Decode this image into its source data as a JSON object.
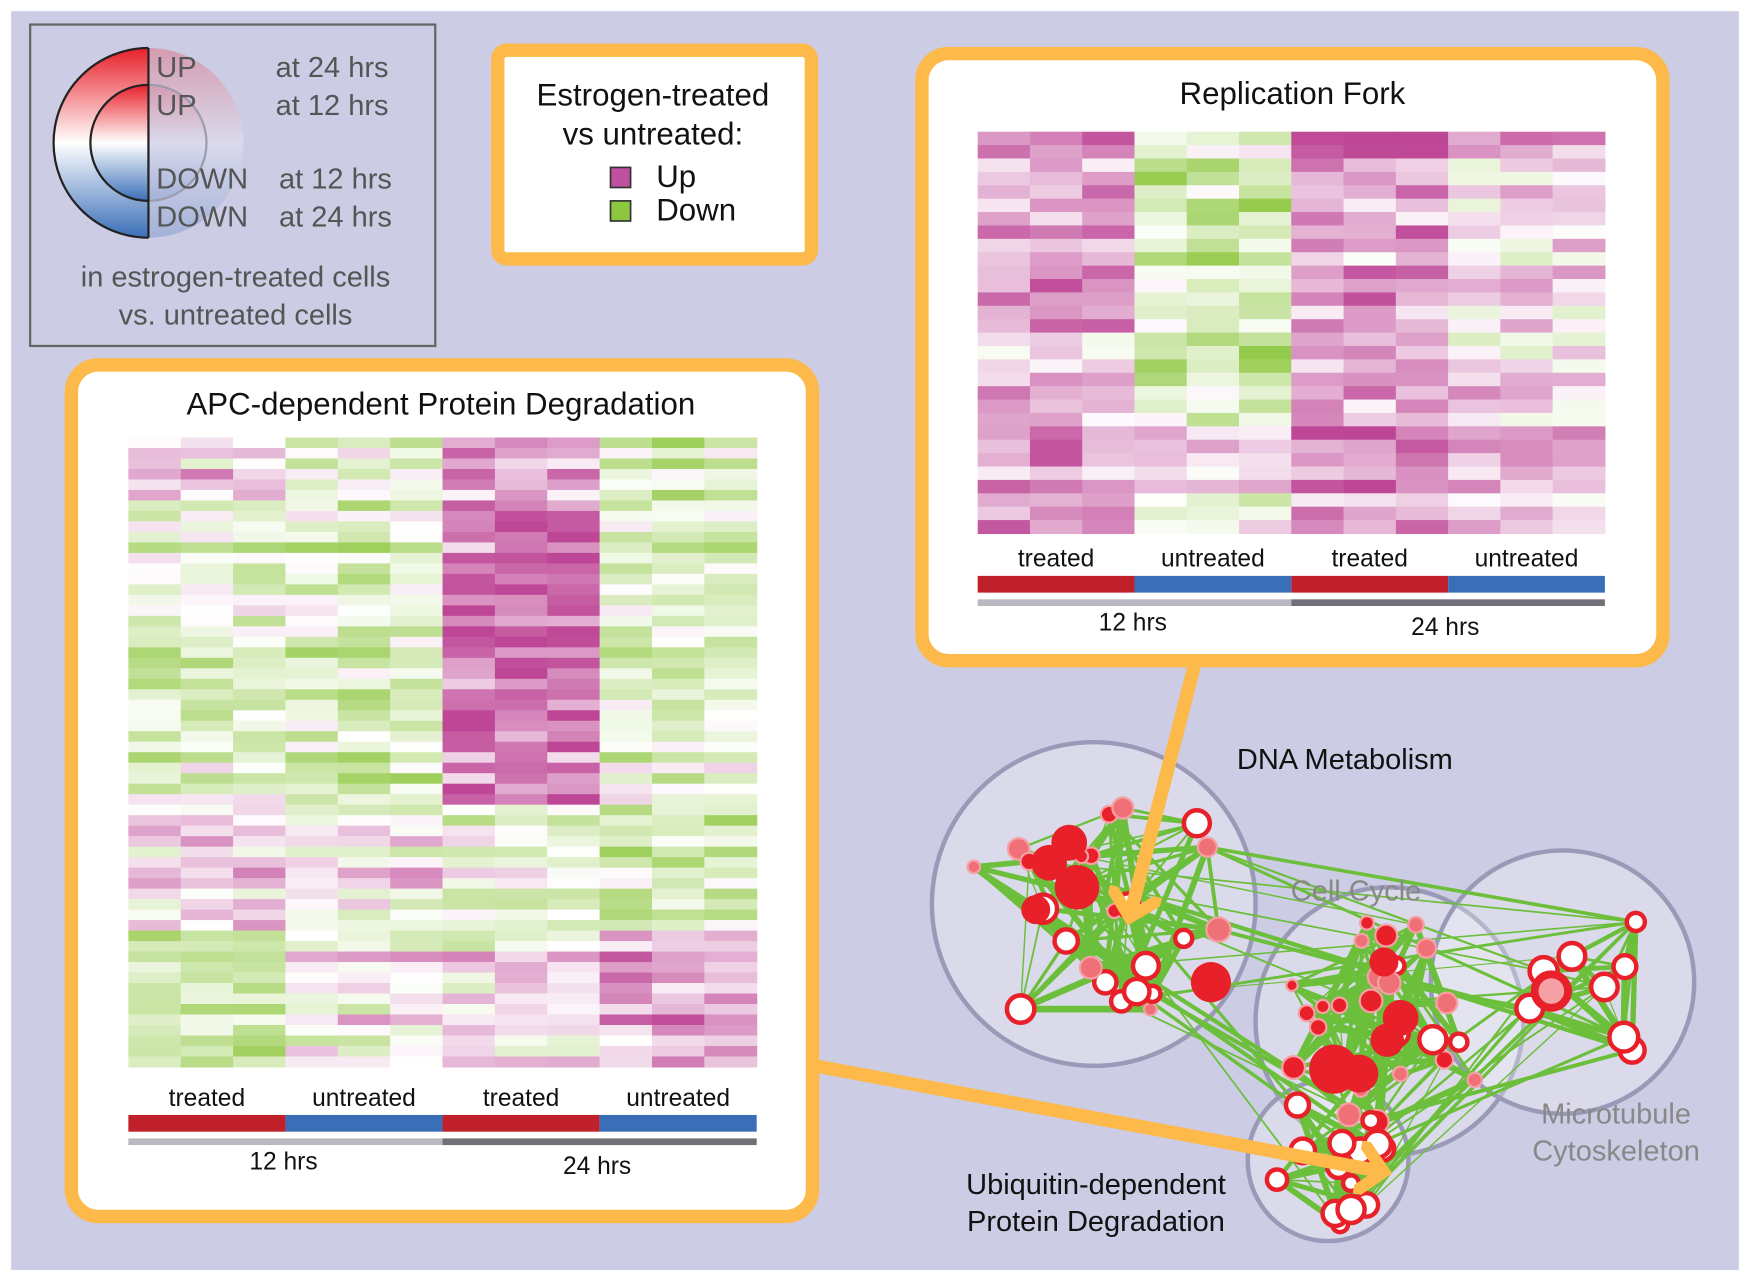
{
  "legend": {
    "rows": [
      {
        "state": "UP",
        "time": "at 24 hrs"
      },
      {
        "state": "UP",
        "time": "at 12 hrs"
      },
      {
        "state": "DOWN",
        "time": "at 12 hrs"
      },
      {
        "state": "DOWN",
        "time": "at 24 hrs"
      }
    ],
    "caption": [
      "in estrogen-treated cells",
      "vs. untreated cells"
    ]
  },
  "key": {
    "title": [
      "Estrogen-treated",
      "vs untreated:"
    ],
    "items": [
      "Up",
      "Down"
    ]
  },
  "heatmaps": [
    {
      "title": "Replication Fork",
      "groups": [
        "treated",
        "untreated",
        "treated",
        "untreated"
      ],
      "times": [
        "12 hrs",
        "24 hrs"
      ]
    },
    {
      "title": "APC-dependent Protein Degradation",
      "groups": [
        "treated",
        "untreated",
        "treated",
        "untreated"
      ],
      "times": [
        "12 hrs",
        "24 hrs"
      ]
    }
  ],
  "network": {
    "clusters": [
      {
        "label": [
          "DNA Metabolism"
        ]
      },
      {
        "label": [
          "Cell Cycle"
        ]
      },
      {
        "label": [
          "Microtubule",
          "Cytoskeleton"
        ]
      },
      {
        "label": [
          "Ubiquitin-dependent",
          "Protein Degradation"
        ]
      }
    ]
  }
}
